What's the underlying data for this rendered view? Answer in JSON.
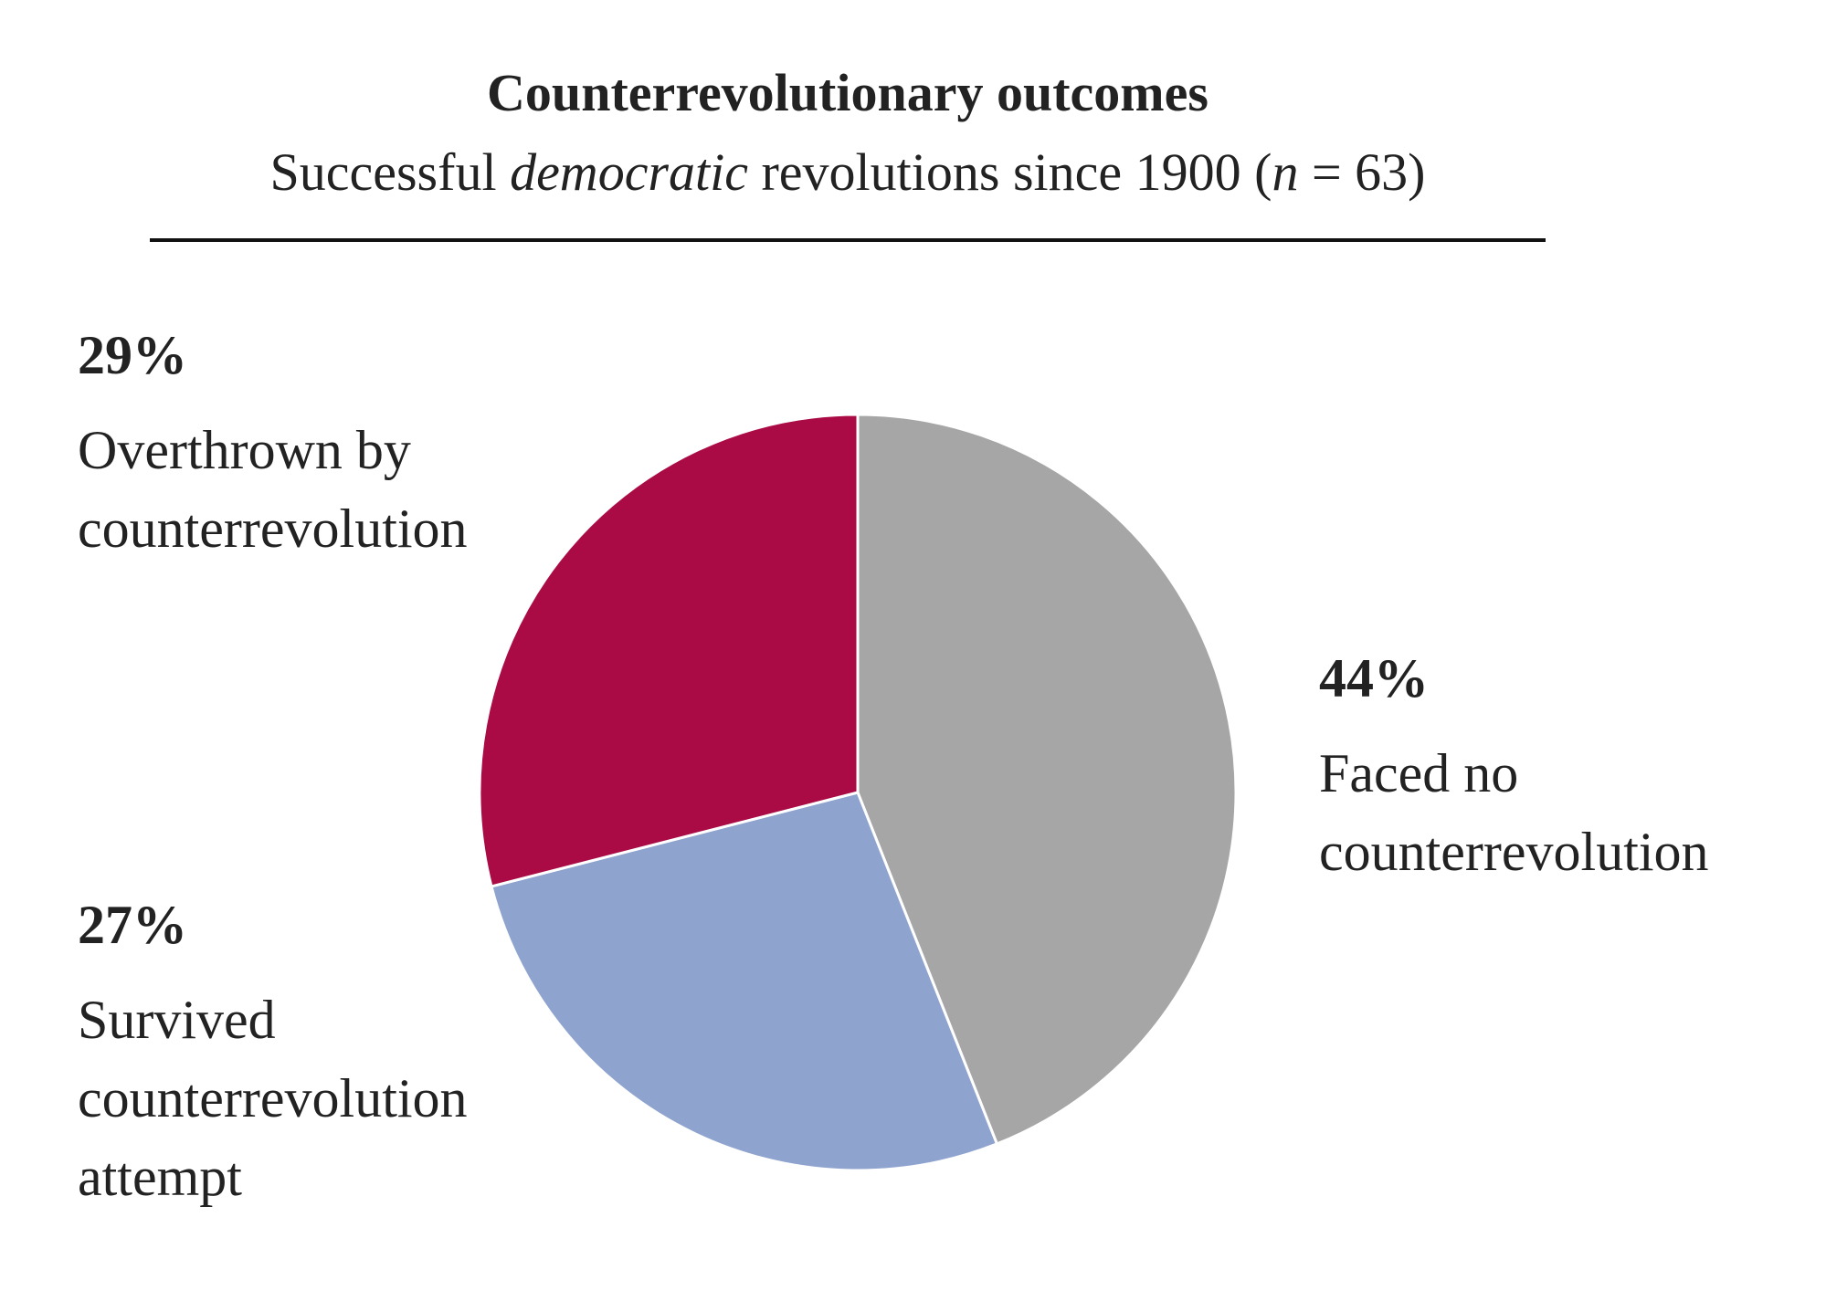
{
  "chart_data": {
    "type": "pie",
    "title": "Counterrevolutionary outcomes",
    "subtitle_parts": [
      "Successful",
      "democratic",
      "revolutions since 1900 (",
      "n",
      "= 63)"
    ],
    "categories": [
      "Faced no counterrevolution",
      "Survived counterrevolution attempt",
      "Overthrown by counterrevolution"
    ],
    "values": [
      44,
      27,
      29
    ],
    "value_labels": [
      "44%",
      "27%",
      "29%"
    ],
    "colors": [
      "#a6a6a6",
      "#8fa3cf",
      "#ab0b45"
    ]
  }
}
